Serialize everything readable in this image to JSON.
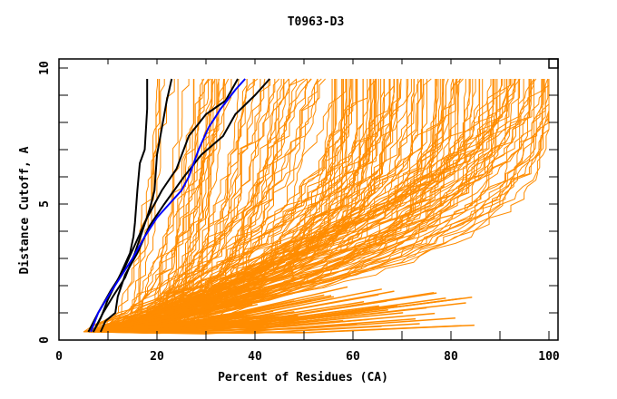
{
  "chart_data": {
    "type": "line",
    "title": "T0963-D3",
    "xlabel": "Percent of Residues (CA)",
    "ylabel": "Distance Cutoff, A",
    "xlim": [
      0,
      100
    ],
    "ylim": [
      0,
      10
    ],
    "x_ticks": [
      0,
      20,
      40,
      60,
      80,
      100
    ],
    "x_tick_labels": [
      "0",
      "20",
      "40",
      "60",
      "80",
      "100"
    ],
    "x_minor_ticks": [
      10,
      30,
      50,
      70,
      90
    ],
    "y_ticks": [
      0,
      5,
      10
    ],
    "y_tick_labels": [
      "0",
      "5",
      "10"
    ],
    "y_minor_ticks": [
      1,
      2,
      3,
      4,
      6,
      7,
      8,
      9
    ],
    "grid": false,
    "legend": "none",
    "colors": {
      "background_models": "#ff8c00",
      "highlight_black": "#000000",
      "highlight_blue": "#0000ff",
      "frame": "#000000"
    },
    "background_series": {
      "name": "all models",
      "color": "#ff8c00",
      "count": 180,
      "y_range": [
        0.3,
        9.6
      ],
      "x_at_max_cutoff_range": [
        17,
        100
      ],
      "x_at_min_cutoff_range": [
        5,
        12
      ]
    },
    "series": [
      {
        "name": "black-1",
        "color": "#000000",
        "points": [
          [
            7.0,
            0.3
          ],
          [
            8.5,
            0.8
          ],
          [
            10.0,
            1.5
          ],
          [
            12.5,
            2.4
          ],
          [
            14.5,
            3.2
          ],
          [
            15.2,
            3.8
          ],
          [
            15.5,
            4.3
          ],
          [
            16.0,
            5.5
          ],
          [
            16.5,
            6.5
          ],
          [
            17.5,
            7.0
          ],
          [
            18.0,
            8.5
          ],
          [
            18.0,
            9.6
          ]
        ]
      },
      {
        "name": "black-2",
        "color": "#000000",
        "points": [
          [
            7.0,
            0.3
          ],
          [
            9.0,
            1.0
          ],
          [
            11.0,
            1.6
          ],
          [
            13.5,
            2.3
          ],
          [
            15.5,
            3.2
          ],
          [
            17.0,
            4.0
          ],
          [
            18.5,
            4.8
          ],
          [
            19.5,
            5.5
          ],
          [
            20.0,
            6.8
          ],
          [
            21.0,
            7.8
          ],
          [
            22.0,
            8.8
          ],
          [
            23.0,
            9.6
          ]
        ]
      },
      {
        "name": "black-3",
        "color": "#000000",
        "points": [
          [
            6.0,
            0.3
          ],
          [
            8.0,
            1.0
          ],
          [
            10.5,
            1.8
          ],
          [
            13.0,
            2.5
          ],
          [
            15.5,
            3.5
          ],
          [
            18.0,
            4.5
          ],
          [
            21.0,
            5.5
          ],
          [
            24.0,
            6.3
          ],
          [
            26.5,
            7.5
          ],
          [
            30.0,
            8.3
          ],
          [
            34.0,
            8.8
          ],
          [
            36.5,
            9.6
          ]
        ]
      },
      {
        "name": "black-4",
        "color": "#000000",
        "points": [
          [
            8.5,
            0.3
          ],
          [
            9.5,
            0.7
          ],
          [
            11.5,
            1.0
          ],
          [
            12.0,
            1.6
          ],
          [
            13.5,
            2.4
          ],
          [
            16.0,
            3.2
          ],
          [
            18.5,
            4.2
          ],
          [
            21.5,
            5.0
          ],
          [
            25.5,
            6.0
          ],
          [
            29.0,
            6.8
          ],
          [
            33.5,
            7.5
          ],
          [
            36.0,
            8.3
          ],
          [
            40.0,
            9.0
          ],
          [
            43.0,
            9.6
          ]
        ]
      },
      {
        "name": "blue",
        "color": "#0000ff",
        "points": [
          [
            6.5,
            0.3
          ],
          [
            8.0,
            1.0
          ],
          [
            10.0,
            1.6
          ],
          [
            12.5,
            2.3
          ],
          [
            15.0,
            3.0
          ],
          [
            17.5,
            3.8
          ],
          [
            20.0,
            4.5
          ],
          [
            22.5,
            5.0
          ],
          [
            25.0,
            5.5
          ],
          [
            26.5,
            6.0
          ],
          [
            28.5,
            7.0
          ],
          [
            30.5,
            7.8
          ],
          [
            33.0,
            8.5
          ],
          [
            36.0,
            9.2
          ],
          [
            38.0,
            9.6
          ]
        ]
      }
    ]
  }
}
